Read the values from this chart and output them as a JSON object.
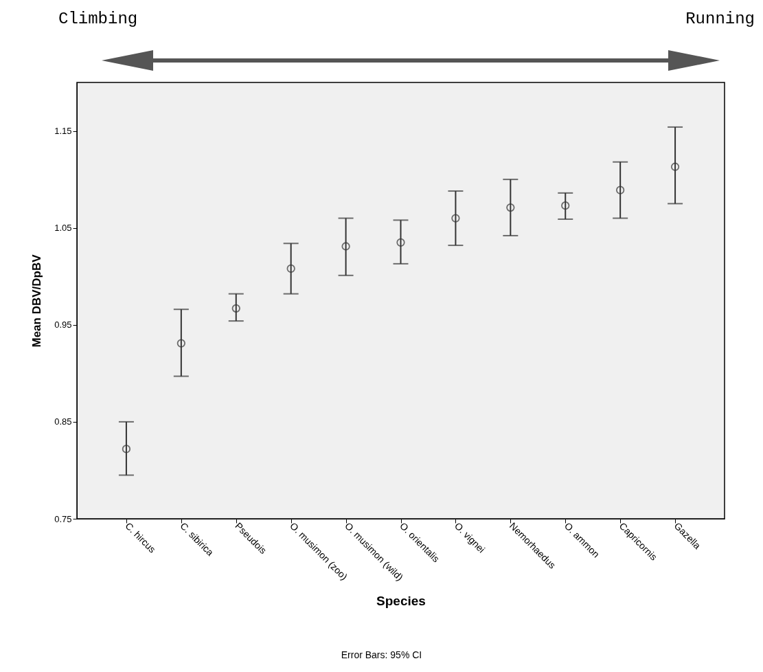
{
  "chart_data": {
    "type": "scatter",
    "xlabel": "Species",
    "ylabel": "Mean DBV/DpBV",
    "categories": [
      "C. hircus",
      "C. sibirica",
      "Pseudois",
      "O. musimon (zoo)",
      "O. musimon (wild)",
      "O. orientalis",
      "O. vignei",
      "Nemorhaedus",
      "O. ammon",
      "Capricornis",
      "Gazella"
    ],
    "series": [
      {
        "color": "#333333",
        "values": [
          0.822,
          0.931,
          0.967,
          1.008,
          1.031,
          1.035,
          1.06,
          1.071,
          1.073,
          1.089,
          1.113
        ],
        "errors": [
          [
            0.795,
            0.85
          ],
          [
            0.897,
            0.966
          ],
          [
            0.954,
            0.982
          ],
          [
            0.982,
            1.034
          ],
          [
            1.001,
            1.06
          ],
          [
            1.013,
            1.058
          ],
          [
            1.032,
            1.088
          ],
          [
            1.042,
            1.1
          ],
          [
            1.059,
            1.086
          ],
          [
            1.06,
            1.118
          ],
          [
            1.075,
            1.154
          ]
        ]
      }
    ],
    "ylim": [
      0.75,
      1.2
    ],
    "yticks": [
      0.75,
      0.85,
      0.95,
      1.05,
      1.15
    ],
    "grid": false,
    "marker": "circle",
    "annotations": [
      "Climbing",
      "Running",
      "Error Bars: 95% CI"
    ]
  }
}
